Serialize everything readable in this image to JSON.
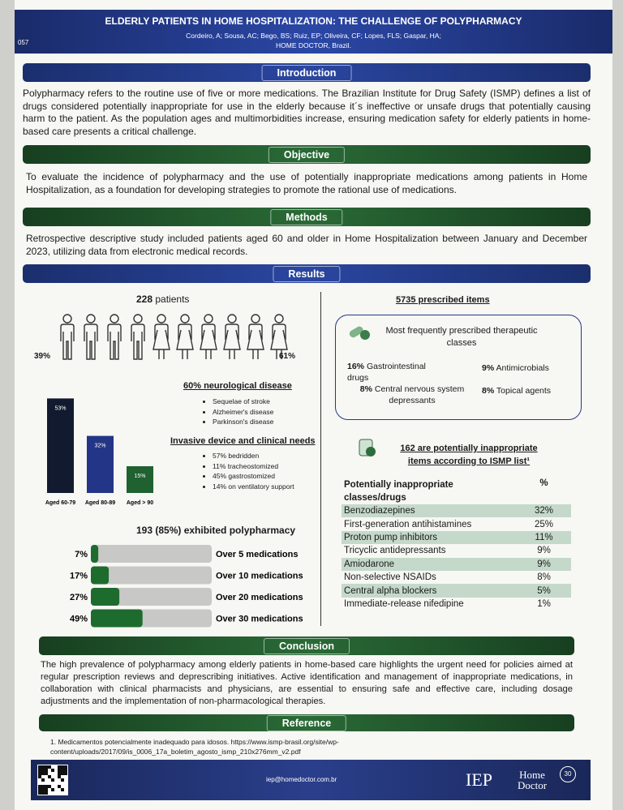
{
  "header": {
    "number": "057",
    "title": "ELDERLY PATIENTS IN HOME HOSPITALIZATION: THE CHALLENGE OF POLYPHARMACY",
    "authors": "Cordeiro, A; Sousa, AC; Bego, BS; Ruiz, EP; Oliveira, CF; Lopes, FLS; Gaspar, HA;",
    "affiliation": "HOME DOCTOR, Brazil."
  },
  "introduction": {
    "heading": "Introduction",
    "text": "Polypharmacy refers to the routine use of five or more medications. The Brazilian Institute for Drug Safety (ISMP) defines a list of drugs considered potentially inappropriate for use in the elderly because it´s ineffective or unsafe drugs that potentially causing harm to the patient. As the population ages and multimorbidities increase, ensuring medication safety for elderly patients in home-based care presents a critical challenge."
  },
  "objective": {
    "heading": "Objective",
    "text": "To evaluate the incidence of polypharmacy and the use of potentially inappropriate medications among patients in Home Hospitalization, as a foundation for developing strategies to promote the rational use of medications."
  },
  "methods": {
    "heading": "Methods",
    "text": "Retrospective descriptive study included patients aged 60 and older in Home Hospitalization between January and December 2023, utilizing data from electronic medical records."
  },
  "results": {
    "heading": "Results",
    "patients": {
      "count": "228",
      "label": "patients",
      "male_pct": "39%",
      "female_pct": "61%"
    },
    "neuro": {
      "title": "60% neurological disease",
      "items": [
        "Sequelae of stroke",
        "Alzheimer's disease",
        "Parkinson's disease"
      ]
    },
    "invasive": {
      "title": "Invasive device and clinical needs",
      "items": [
        "57% bedridden",
        "11% tracheostomized",
        "45% gastrostomized",
        "14% on ventilatory support"
      ]
    },
    "age_chart": {
      "type": "bar",
      "categories": [
        "Aged 60-79",
        "Aged 80-89",
        "Aged > 90"
      ],
      "values": [
        53,
        32,
        15
      ],
      "value_labels": [
        "53%",
        "32%",
        "15%"
      ],
      "colors": [
        "#111a2e",
        "#233586",
        "#1f6130"
      ]
    },
    "polypharmacy": {
      "type": "bar",
      "title": "193 (85%) exhibited polypharmacy",
      "categories": [
        "Over 5 medications",
        "Over 10 medications",
        "Over 20 medications",
        "Over 30 medications"
      ],
      "values": [
        7,
        17,
        27,
        49
      ],
      "value_labels": [
        "7%",
        "17%",
        "27%",
        "49%"
      ],
      "color": "#1e6b2e"
    },
    "prescribed": {
      "title": "5735 prescribed items",
      "box_title": "Most frequently prescribed therapeutic classes",
      "classes": [
        {
          "pct": "16%",
          "name": "Gastrointestinal drugs"
        },
        {
          "pct": "9%",
          "name": "Antimicrobials"
        },
        {
          "pct": "8%",
          "name": "Central nervous system depressants"
        },
        {
          "pct": "8%",
          "name": "Topical agents"
        }
      ]
    },
    "inappropriate": {
      "title": "162 are potentially inappropriate items according to ISMP list¹",
      "table": {
        "header": [
          "Potentially inappropriate classes/drugs",
          "%"
        ],
        "rows": [
          [
            "Benzodiazepines",
            "32%"
          ],
          [
            "First-generation antihistamines",
            "25%"
          ],
          [
            "Proton pump inhibitors",
            "11%"
          ],
          [
            "Tricyclic antidepressants",
            "9%"
          ],
          [
            "Amiodarone",
            "9%"
          ],
          [
            "Non-selective NSAIDs",
            "8%"
          ],
          [
            "Central alpha blockers",
            "5%"
          ],
          [
            "Immediate-release nifedipine",
            "1%"
          ]
        ]
      }
    }
  },
  "conclusion": {
    "heading": "Conclusion",
    "text": "The high prevalence of polypharmacy among elderly patients in home-based care highlights the urgent need for policies aimed at regular prescription reviews and deprescribing initiatives. Active identification and management of inappropriate medications, in collaboration with clinical pharmacists and physicians, are essential to ensuring safe and effective care, including dosage adjustments and the implementation of non-pharmacological therapies."
  },
  "reference": {
    "heading": "Reference",
    "text": "1. Medicamentos potencialmente inadequado para idosos. https://www.ismp-brasil.org/site/wp-content/uploads/2017/09/is_0006_17a_boletim_agosto_ismp_210x276mm_v2.pdf"
  },
  "footer": {
    "email": "iep@homedoctor.com.br",
    "logo_iep": "IEP",
    "logo_home": "Home",
    "logo_doctor": "Doctor",
    "logo_badge": "30"
  }
}
